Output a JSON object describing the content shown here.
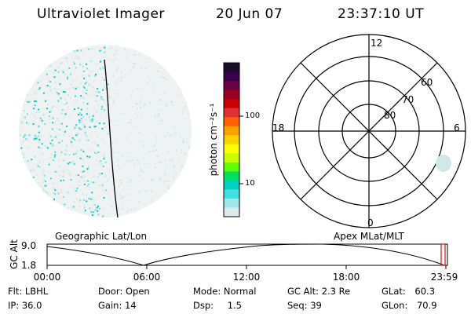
{
  "header": {
    "instrument": "Ultraviolet Imager",
    "date": "20 Jun 07",
    "time": "23:37:10 UT"
  },
  "left_panel": {
    "label": "Geographic Lat/Lon"
  },
  "right_panel": {
    "label": "Apex MLat/MLT",
    "mlt_labels": {
      "top": "12",
      "left": "18",
      "right": "6",
      "bottom": "0"
    },
    "lat_labels": [
      "60",
      "70",
      "80"
    ]
  },
  "colorbar": {
    "unit_label": "photon cm⁻²s⁻¹",
    "ticks": [
      "100",
      "10"
    ],
    "colors": [
      "#1a0a2e",
      "#3a0050",
      "#6a0040",
      "#9a0020",
      "#c80000",
      "#e03030",
      "#ff6000",
      "#ffa000",
      "#ffd000",
      "#ffff00",
      "#c8ff00",
      "#60ff00",
      "#00e060",
      "#00d0c0",
      "#40e0e0",
      "#a0e8ec",
      "#dcecec"
    ]
  },
  "altitude_plot": {
    "ylabel": "GC Alt",
    "yticks": [
      "9.0",
      "1.8"
    ],
    "xticks": [
      "00:00",
      "06:00",
      "12:00",
      "18:00",
      "23:59"
    ]
  },
  "footer": {
    "rows": [
      [
        {
          "label": "Flt:",
          "value": "LBHL"
        },
        {
          "label": "Door:",
          "value": "Open"
        },
        {
          "label": "Mode:",
          "value": "Normal"
        },
        {
          "label": "GC Alt:",
          "value": "2.3 Re"
        },
        {
          "label": "GLat:",
          "value": "60.3"
        }
      ],
      [
        {
          "label": "IP:",
          "value": "36.0"
        },
        {
          "label": "Gain:",
          "value": "14"
        },
        {
          "label": "Dsp:",
          "value": "1.5"
        },
        {
          "label": "Seq:",
          "value": "39"
        },
        {
          "label": "GLon:",
          "value": "70.9"
        }
      ]
    ]
  }
}
